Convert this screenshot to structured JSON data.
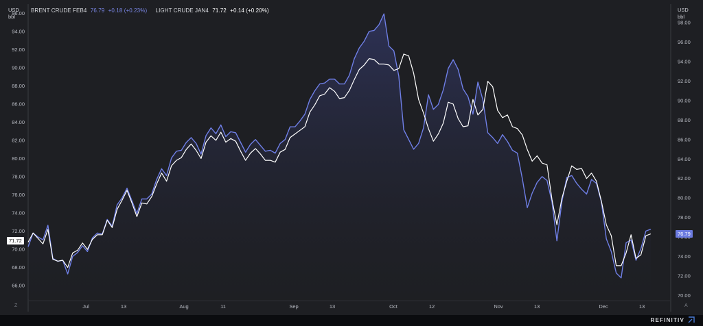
{
  "legend": {
    "brent_name": "BRENT CRUDE FEB4",
    "brent_value": "76.79",
    "brent_change": "+0.18 (+0.23%)",
    "light_name": "LIGHT CRUDE JAN4",
    "light_value": "71.72",
    "light_change": "+0.14 (+0.20%)"
  },
  "left_unit": [
    "USD",
    "bbl"
  ],
  "right_unit": [
    "USD",
    "bbl"
  ],
  "badges": {
    "light": "71.72",
    "brent": "76.79"
  },
  "corner_left": "Z",
  "corner_right": "A",
  "brand": {
    "name": "REFINITIV"
  },
  "colors": {
    "brent": "#6f7fe6",
    "light": "#ffffff",
    "background": "#1e1f23"
  },
  "chart_data": {
    "type": "line",
    "x_ticks": [
      "Jul",
      "13",
      "Aug",
      "11",
      "Sep",
      "13",
      "Oct",
      "12",
      "Nov",
      "13",
      "Dec",
      "13"
    ],
    "left_axis": {
      "ticks": [
        "66.00",
        "68.00",
        "70.00",
        "72.00",
        "74.00",
        "76.00",
        "78.00",
        "80.00",
        "82.00",
        "84.00",
        "86.00",
        "88.00",
        "90.00",
        "92.00",
        "94.00",
        "96.00"
      ],
      "ylim": [
        64.5,
        97
      ]
    },
    "right_axis": {
      "ticks": [
        "70.00",
        "72.00",
        "74.00",
        "76.00",
        "78.00",
        "80.00",
        "82.00",
        "84.00",
        "86.00",
        "88.00",
        "90.00",
        "92.00",
        "94.00",
        "96.00",
        "98.00"
      ],
      "ylim": [
        69.6,
        99.9
      ]
    },
    "series": [
      {
        "name": "BRENT CRUDE FEB4",
        "axis": "right",
        "values": [
          75.0,
          76.4,
          76.0,
          75.7,
          77.2,
          73.8,
          73.5,
          73.6,
          72.2,
          74.0,
          74.4,
          75.1,
          74.5,
          75.9,
          76.4,
          76.3,
          77.8,
          77.1,
          79.3,
          80.0,
          81.0,
          79.7,
          78.4,
          79.9,
          79.9,
          80.4,
          81.9,
          83.0,
          82.3,
          84.1,
          84.8,
          84.9,
          85.7,
          86.2,
          85.6,
          84.5,
          86.4,
          87.2,
          86.6,
          87.5,
          86.3,
          86.8,
          86.7,
          85.7,
          84.7,
          85.5,
          86.0,
          85.4,
          84.8,
          84.9,
          84.6,
          85.6,
          86.0,
          87.3,
          87.3,
          87.9,
          88.6,
          90.1,
          91.0,
          91.7,
          91.8,
          92.2,
          92.2,
          91.7,
          91.7,
          92.6,
          94.3,
          95.4,
          96.1,
          97.1,
          97.2,
          97.8,
          98.9,
          95.6,
          95.1,
          92.5,
          87.0,
          86.0,
          85.0,
          85.6,
          87.2,
          90.6,
          89.1,
          89.6,
          91.1,
          93.3,
          94.2,
          93.2,
          91.2,
          90.4,
          88.6,
          91.9,
          90.1,
          86.7,
          86.2,
          85.6,
          86.5,
          85.8,
          84.9,
          84.6,
          82.0,
          79.0,
          80.5,
          81.6,
          82.2,
          81.8,
          79.6,
          75.6,
          79.6,
          82.1,
          82.3,
          81.5,
          80.9,
          80.4,
          81.9,
          81.5,
          79.6,
          75.8,
          74.5,
          72.3,
          71.8,
          75.4,
          75.7,
          73.6,
          74.8,
          76.6,
          76.8
        ]
      },
      {
        "name": "LIGHT CRUDE JAN4",
        "axis": "left",
        "values": [
          70.8,
          71.8,
          71.2,
          70.6,
          72.2,
          68.9,
          68.7,
          68.8,
          68.0,
          69.6,
          69.9,
          70.7,
          70.0,
          71.1,
          71.6,
          71.6,
          73.2,
          72.4,
          74.4,
          75.4,
          76.5,
          75.1,
          73.6,
          75.1,
          75.0,
          75.8,
          77.2,
          78.4,
          77.5,
          79.2,
          79.8,
          80.1,
          81.0,
          81.6,
          80.9,
          80.0,
          81.8,
          82.5,
          82.0,
          82.9,
          81.8,
          82.2,
          81.9,
          80.8,
          79.8,
          80.6,
          81.1,
          80.5,
          79.8,
          79.8,
          79.6,
          80.7,
          81.0,
          82.3,
          82.7,
          83.1,
          83.5,
          85.1,
          85.9,
          86.9,
          87.1,
          87.8,
          87.4,
          86.6,
          86.7,
          87.5,
          88.7,
          89.8,
          90.3,
          91.0,
          90.9,
          90.4,
          90.4,
          90.3,
          89.7,
          89.9,
          91.5,
          91.3,
          89.4,
          86.5,
          85.0,
          83.3,
          81.9,
          82.7,
          83.9,
          86.2,
          86.0,
          84.4,
          83.5,
          83.6,
          86.5,
          84.8,
          85.4,
          88.5,
          87.9,
          85.3,
          84.5,
          84.8,
          83.5,
          83.3,
          82.6,
          81.0,
          79.7,
          80.3,
          79.5,
          79.3,
          75.5,
          72.7,
          75.6,
          77.5,
          79.2,
          78.8,
          78.9,
          77.8,
          78.4,
          77.5,
          75.3,
          72.7,
          71.5,
          68.2,
          68.2,
          69.6,
          71.6,
          69.0,
          69.4,
          71.5,
          71.7
        ]
      }
    ]
  }
}
